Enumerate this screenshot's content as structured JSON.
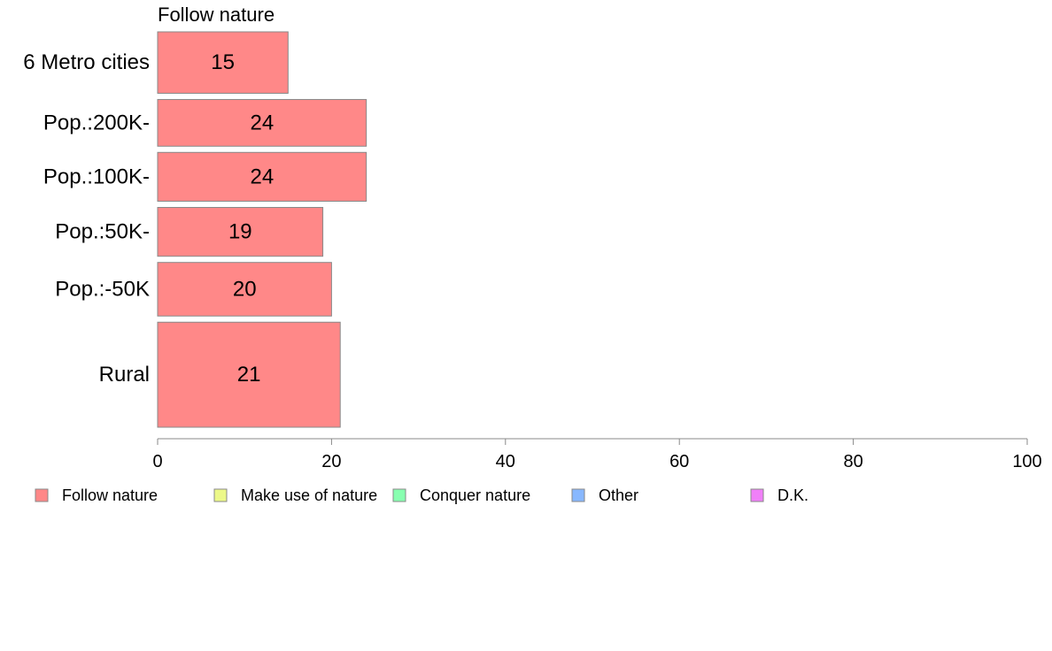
{
  "chart_data": {
    "type": "bar",
    "orientation": "horizontal",
    "panel_title": "Follow nature",
    "categories": [
      "6 Metro cities",
      "Pop.:200K-",
      "Pop.:100K-",
      "Pop.:50K-",
      "Pop.:-50K",
      "Rural"
    ],
    "series": [
      {
        "name": "Follow nature",
        "values": [
          15,
          24,
          24,
          19,
          20,
          21
        ],
        "labels": [
          "15",
          "24",
          "24",
          "19",
          "20",
          "21"
        ]
      }
    ],
    "category_weights": [
      1.17,
      0.89,
      0.93,
      0.93,
      1.02,
      2.0
    ],
    "xlim": [
      0,
      100
    ],
    "xticks": [
      0,
      20,
      40,
      60,
      80,
      100
    ],
    "xtick_labels": [
      "0",
      "20",
      "40",
      "60",
      "80",
      "100"
    ],
    "grid": false,
    "legend": {
      "placement": "bottom",
      "entries": [
        {
          "label": "Follow nature",
          "color": "#ff8888"
        },
        {
          "label": "Make use of nature",
          "color": "#ecf888"
        },
        {
          "label": "Conquer nature",
          "color": "#88ffb0"
        },
        {
          "label": "Other",
          "color": "#88b8ff"
        },
        {
          "label": "D.K.",
          "color": "#f080f8"
        }
      ]
    },
    "colors": {
      "bar": "#ff8888",
      "bar_stroke": "#888888",
      "axis": "#888888"
    }
  }
}
